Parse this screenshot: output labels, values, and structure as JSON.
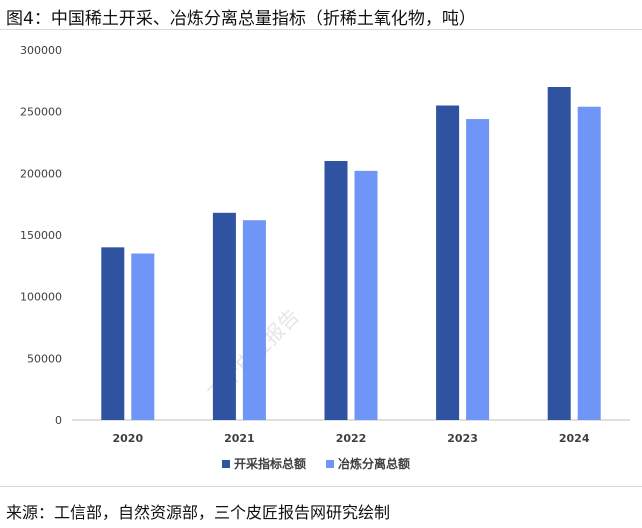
{
  "figure": {
    "title": "图4：中国稀土开采、冶炼分离总量指标（折稀土氧化物，吨）",
    "source": "来源：工信部，自然资源部，三个皮匠报告网研究绘制",
    "watermark": "三个皮匠报告"
  },
  "chart_data": {
    "type": "bar",
    "title": "",
    "xlabel": "",
    "ylabel": "",
    "categories": [
      "2020",
      "2021",
      "2022",
      "2023",
      "2024"
    ],
    "series": [
      {
        "name": "开采指标总额",
        "color": "#2f52a1",
        "values": [
          140000,
          168000,
          210000,
          255000,
          270000
        ]
      },
      {
        "name": "冶炼分离总额",
        "color": "#6f95f7",
        "values": [
          135000,
          162000,
          202000,
          244000,
          254000
        ]
      }
    ],
    "ylim": [
      0,
      300000
    ],
    "yticks": [
      0,
      50000,
      100000,
      150000,
      200000,
      250000,
      300000
    ],
    "grid": false,
    "legend": "bottom-center"
  }
}
